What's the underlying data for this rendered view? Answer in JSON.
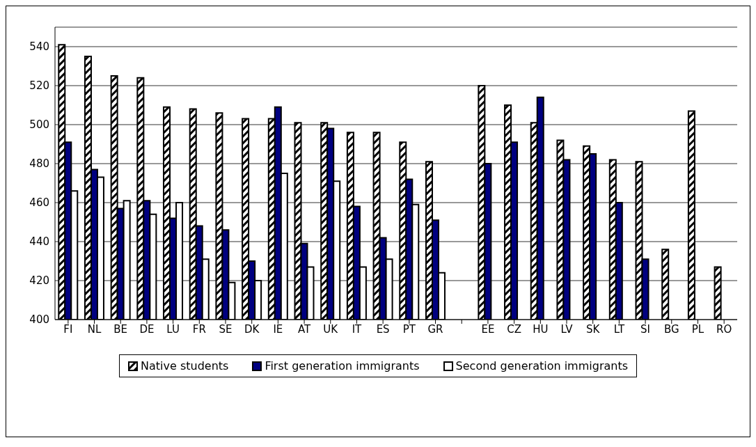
{
  "chart_data": {
    "type": "bar",
    "categories": [
      "FI",
      "NL",
      "BE",
      "DE",
      "LU",
      "FR",
      "SE",
      "DK",
      "IE",
      "AT",
      "UK",
      "IT",
      "ES",
      "PT",
      "GR",
      null,
      "EE",
      "CZ",
      "HU",
      "LV",
      "SK",
      "LT",
      "SI",
      "BG",
      "PL",
      "RO"
    ],
    "series": [
      {
        "name": "Native students",
        "color": "#000000",
        "values": [
          541,
          535,
          525,
          524,
          509,
          508,
          506,
          503,
          503,
          501,
          501,
          496,
          496,
          491,
          481,
          null,
          520,
          510,
          501,
          492,
          489,
          482,
          481,
          436,
          507,
          427
        ]
      },
      {
        "name": "First generation immigrants",
        "color": "#000080",
        "values": [
          491,
          477,
          457,
          461,
          452,
          448,
          446,
          430,
          509,
          439,
          498,
          458,
          442,
          472,
          451,
          null,
          480,
          491,
          514,
          482,
          485,
          460,
          431,
          null,
          null,
          null
        ]
      },
      {
        "name": "Second generation immigrants",
        "color": "#ffffff",
        "values": [
          466,
          473,
          461,
          454,
          460,
          431,
          419,
          420,
          475,
          427,
          471,
          427,
          431,
          459,
          424,
          null,
          null,
          null,
          null,
          null,
          null,
          null,
          null,
          null,
          null,
          null
        ]
      }
    ],
    "ylim": [
      400,
      550
    ],
    "yticks": [
      400,
      420,
      440,
      460,
      480,
      500,
      520,
      540
    ],
    "grid": "y",
    "legend": "bottom"
  }
}
